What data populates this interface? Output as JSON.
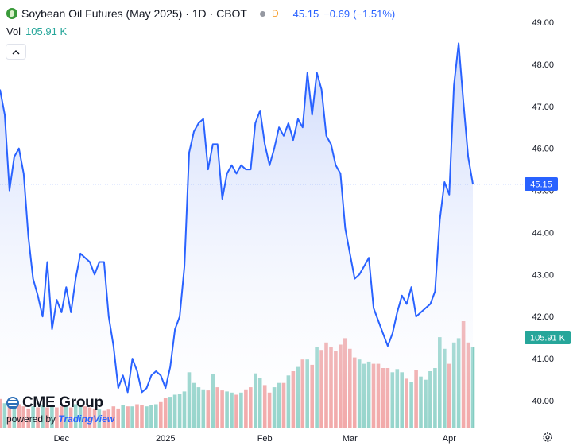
{
  "header": {
    "symbol_title": "Soybean Oil Futures (May 2025) · 1D · CBOT",
    "data_flag": "D",
    "last_price": "45.15",
    "change": "−0.69",
    "change_pct": "(−1.51%)",
    "volume_label": "Vol",
    "volume_value": "105.91 K"
  },
  "branding": {
    "cme_label": "CME Group",
    "powered_by": "powered by",
    "tradingview": "TradingView"
  },
  "colors": {
    "line": "#2962ff",
    "area_top": "#c9d6fb",
    "vol_up": "#83cdc2",
    "vol_down": "#ef9a9a",
    "price_tag": "#2962ff",
    "vol_tag": "#26a69a"
  },
  "chart_data": {
    "type": "line",
    "price_tag": "45.15",
    "volume_tag": "105.91 K",
    "y_ticks": [
      "49.00",
      "48.00",
      "47.00",
      "46.00",
      "45.00",
      "44.00",
      "43.00",
      "42.00",
      "41.00",
      "40.00"
    ],
    "ylim": [
      39.6,
      49.3
    ],
    "x_ticks": [
      "Dec",
      "2025",
      "Feb",
      "Mar",
      "Apr"
    ],
    "x_tick_index": [
      13,
      35,
      56,
      74,
      95
    ],
    "close": [
      47.4,
      46.8,
      45.0,
      45.8,
      46.0,
      45.4,
      43.9,
      42.9,
      42.5,
      42.0,
      43.3,
      41.7,
      42.4,
      42.1,
      42.7,
      42.1,
      42.9,
      43.5,
      43.4,
      43.3,
      43.0,
      43.3,
      43.3,
      42.0,
      41.3,
      40.3,
      40.6,
      40.2,
      41.0,
      40.7,
      40.2,
      40.3,
      40.6,
      40.7,
      40.6,
      40.3,
      40.8,
      41.7,
      42.0,
      43.2,
      45.9,
      46.4,
      46.6,
      46.7,
      45.5,
      46.1,
      46.1,
      44.8,
      45.4,
      45.6,
      45.4,
      45.6,
      45.5,
      45.5,
      46.6,
      46.9,
      46.1,
      45.6,
      46.0,
      46.5,
      46.3,
      46.6,
      46.2,
      46.7,
      46.5,
      47.8,
      46.8,
      47.8,
      47.4,
      46.3,
      46.1,
      45.6,
      45.4,
      44.1,
      43.5,
      42.9,
      43.0,
      43.2,
      43.4,
      42.2,
      41.9,
      41.6,
      41.3,
      41.6,
      42.1,
      42.5,
      42.3,
      42.7,
      42.0,
      42.1,
      42.2,
      42.3,
      42.6,
      44.3,
      45.2,
      44.9,
      47.5,
      48.5,
      47.1,
      45.8,
      45.15
    ],
    "volume": [
      0.27,
      0.23,
      0.22,
      0.25,
      0.22,
      0.2,
      0.18,
      0.2,
      0.19,
      0.21,
      0.19,
      0.21,
      0.19,
      0.2,
      0.21,
      0.19,
      0.22,
      0.21,
      0.2,
      0.19,
      0.18,
      0.17,
      0.16,
      0.17,
      0.2,
      0.18,
      0.21,
      0.2,
      0.2,
      0.22,
      0.21,
      0.2,
      0.21,
      0.22,
      0.24,
      0.28,
      0.29,
      0.31,
      0.32,
      0.34,
      0.52,
      0.42,
      0.38,
      0.36,
      0.35,
      0.5,
      0.38,
      0.35,
      0.34,
      0.33,
      0.31,
      0.33,
      0.36,
      0.38,
      0.51,
      0.47,
      0.4,
      0.33,
      0.38,
      0.42,
      0.42,
      0.49,
      0.53,
      0.57,
      0.64,
      0.64,
      0.59,
      0.76,
      0.73,
      0.8,
      0.76,
      0.72,
      0.78,
      0.84,
      0.74,
      0.66,
      0.64,
      0.6,
      0.62,
      0.6,
      0.6,
      0.56,
      0.56,
      0.52,
      0.55,
      0.52,
      0.46,
      0.43,
      0.54,
      0.48,
      0.45,
      0.53,
      0.56,
      0.85,
      0.74,
      0.6,
      0.8,
      0.84,
      1.0,
      0.8,
      0.76
    ],
    "volume_up": [
      0,
      1,
      0,
      1,
      0,
      0,
      0,
      1,
      0,
      1,
      0,
      1,
      0,
      0,
      1,
      0,
      1,
      1,
      0,
      0,
      0,
      1,
      0,
      0,
      0,
      0,
      1,
      0,
      1,
      0,
      0,
      1,
      1,
      1,
      0,
      0,
      1,
      1,
      1,
      1,
      1,
      1,
      1,
      1,
      0,
      1,
      0,
      0,
      1,
      1,
      0,
      1,
      0,
      0,
      1,
      1,
      0,
      0,
      1,
      1,
      0,
      1,
      0,
      1,
      0,
      1,
      0,
      1,
      0,
      0,
      0,
      0,
      0,
      0,
      0,
      0,
      1,
      1,
      1,
      0,
      0,
      0,
      0,
      1,
      1,
      1,
      0,
      1,
      0,
      1,
      1,
      1,
      1,
      1,
      1,
      0,
      1,
      1,
      0,
      0,
      1
    ]
  }
}
